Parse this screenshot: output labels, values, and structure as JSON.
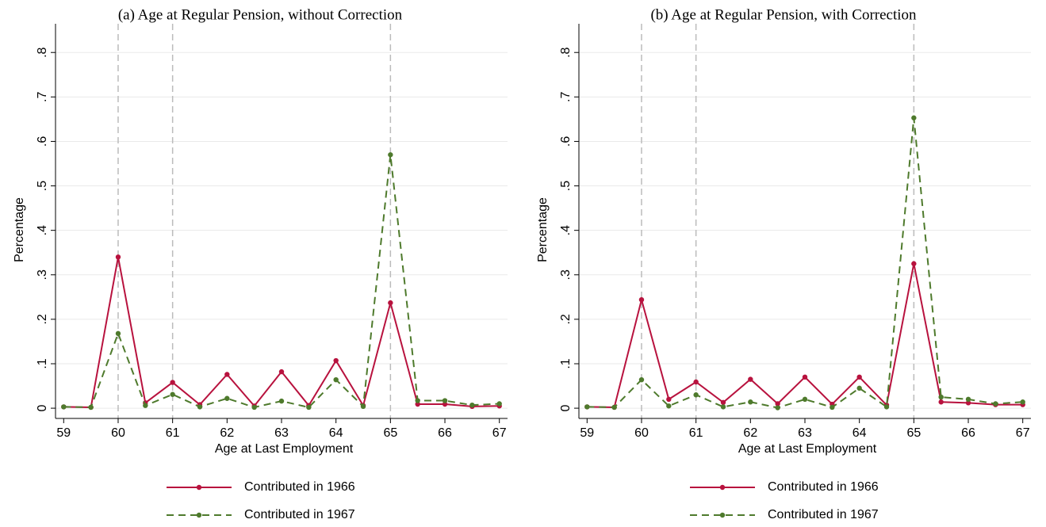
{
  "chart_data": [
    {
      "type": "line",
      "title": "(a) Age at Regular Pension, without Correction",
      "x_label": "Age at Last Employment",
      "y_label": "Percentage",
      "x": [
        59,
        59.5,
        60,
        60.5,
        61,
        61.5,
        62,
        62.5,
        63,
        63.5,
        64,
        64.5,
        65,
        65.5,
        66,
        66.5,
        67
      ],
      "series": [
        {
          "name": "Contributed in 1966",
          "color": "#b8123e",
          "dash": false,
          "values": [
            0.003,
            0.002,
            0.34,
            0.012,
            0.058,
            0.008,
            0.076,
            0.005,
            0.082,
            0.006,
            0.107,
            0.006,
            0.237,
            0.009,
            0.009,
            0.004,
            0.005
          ]
        },
        {
          "name": "Contributed in 1967",
          "color": "#4e7a2c",
          "dash": true,
          "values": [
            0.003,
            0.002,
            0.168,
            0.006,
            0.031,
            0.003,
            0.022,
            0.002,
            0.016,
            0.002,
            0.064,
            0.004,
            0.57,
            0.017,
            0.017,
            0.007,
            0.01
          ]
        }
      ],
      "vlines": [
        60,
        61,
        65
      ],
      "xlim": [
        58.85,
        67.15
      ],
      "xticks": [
        59,
        60,
        61,
        62,
        63,
        64,
        65,
        66,
        67
      ],
      "ylim": [
        -0.023,
        0.82
      ],
      "yticks": [
        0,
        {
          "value": 0.1,
          "label": ".1"
        },
        {
          "value": 0.2,
          "label": ".2"
        },
        {
          "value": 0.3,
          "label": ".3"
        },
        {
          "value": 0.4,
          "label": ".4"
        },
        {
          "value": 0.5,
          "label": ".5"
        },
        {
          "value": 0.6,
          "label": ".6"
        },
        {
          "value": 0.7,
          "label": ".7"
        },
        {
          "value": 0.8,
          "label": ".8"
        }
      ],
      "grid": true,
      "legend": "bottom"
    },
    {
      "type": "line",
      "title": "(b) Age at Regular Pension, with Correction",
      "x_label": "Age at Last Employment",
      "y_label": "Percentage",
      "x": [
        59,
        59.5,
        60,
        60.5,
        61,
        61.5,
        62,
        62.5,
        63,
        63.5,
        64,
        64.5,
        65,
        65.5,
        66,
        66.5,
        67
      ],
      "series": [
        {
          "name": "Contributed in 1966",
          "color": "#b8123e",
          "dash": false,
          "values": [
            0.003,
            0.002,
            0.244,
            0.02,
            0.059,
            0.013,
            0.065,
            0.01,
            0.07,
            0.009,
            0.07,
            0.007,
            0.325,
            0.014,
            0.012,
            0.008,
            0.008
          ]
        },
        {
          "name": "Contributed in 1967",
          "color": "#4e7a2c",
          "dash": true,
          "values": [
            0.003,
            0.002,
            0.064,
            0.005,
            0.03,
            0.003,
            0.014,
            0.001,
            0.02,
            0.002,
            0.045,
            0.003,
            0.653,
            0.025,
            0.02,
            0.01,
            0.014
          ]
        }
      ],
      "vlines": [
        60,
        61,
        65
      ],
      "xlim": [
        58.85,
        67.15
      ],
      "xticks": [
        59,
        60,
        61,
        62,
        63,
        64,
        65,
        66,
        67
      ],
      "ylim": [
        -0.023,
        0.82
      ],
      "yticks": [
        0,
        {
          "value": 0.1,
          "label": ".1"
        },
        {
          "value": 0.2,
          "label": ".2"
        },
        {
          "value": 0.3,
          "label": ".3"
        },
        {
          "value": 0.4,
          "label": ".4"
        },
        {
          "value": 0.5,
          "label": ".5"
        },
        {
          "value": 0.6,
          "label": ".6"
        },
        {
          "value": 0.7,
          "label": ".7"
        },
        {
          "value": 0.8,
          "label": ".8"
        }
      ],
      "grid": true,
      "legend": "bottom"
    }
  ]
}
